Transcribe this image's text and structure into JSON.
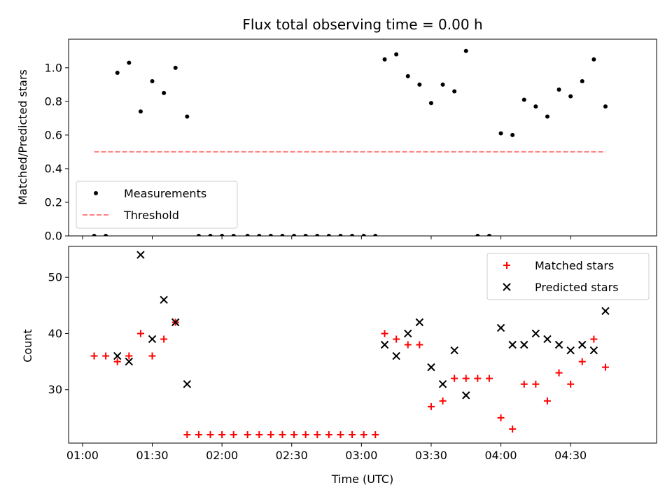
{
  "chart_data": [
    {
      "type": "scatter",
      "title": "Flux total observing time = 0.00 h",
      "xlabel": "",
      "ylabel": "Matched/Predicted stars",
      "xlim": [
        "00:54",
        "05:07"
      ],
      "ylim": [
        0,
        1.17
      ],
      "yticks": [
        0.0,
        0.2,
        0.4,
        0.6,
        0.8,
        1.0
      ],
      "ytick_labels": [
        "0.0",
        "0.2",
        "0.4",
        "0.6",
        "0.8",
        "1.0"
      ],
      "legend_position": "lower-left",
      "series": [
        {
          "name": "Measurements",
          "marker": "dot",
          "color": "#000000",
          "points": [
            [
              "01:05",
              0.0
            ],
            [
              "01:10",
              0.0
            ],
            [
              "01:15",
              0.97
            ],
            [
              "01:20",
              1.03
            ],
            [
              "01:25",
              0.74
            ],
            [
              "01:30",
              0.92
            ],
            [
              "01:35",
              0.85
            ],
            [
              "01:40",
              1.0
            ],
            [
              "01:45",
              0.71
            ],
            [
              "01:50",
              0.0
            ],
            [
              "01:55",
              0.0
            ],
            [
              "02:00",
              0.0
            ],
            [
              "02:05",
              0.0
            ],
            [
              "02:11",
              0.0
            ],
            [
              "02:16",
              0.0
            ],
            [
              "02:21",
              0.0
            ],
            [
              "02:26",
              0.0
            ],
            [
              "02:31",
              0.0
            ],
            [
              "02:36",
              0.0
            ],
            [
              "02:41",
              0.0
            ],
            [
              "02:46",
              0.0
            ],
            [
              "02:51",
              0.0
            ],
            [
              "02:56",
              0.0
            ],
            [
              "03:01",
              0.0
            ],
            [
              "03:06",
              0.0
            ],
            [
              "03:10",
              1.05
            ],
            [
              "03:15",
              1.08
            ],
            [
              "03:20",
              0.95
            ],
            [
              "03:25",
              0.9
            ],
            [
              "03:30",
              0.79
            ],
            [
              "03:35",
              0.9
            ],
            [
              "03:40",
              0.86
            ],
            [
              "03:45",
              1.1
            ],
            [
              "03:50",
              0.0
            ],
            [
              "03:55",
              0.0
            ],
            [
              "04:00",
              0.61
            ],
            [
              "04:05",
              0.6
            ],
            [
              "04:10",
              0.81
            ],
            [
              "04:15",
              0.77
            ],
            [
              "04:20",
              0.71
            ],
            [
              "04:25",
              0.87
            ],
            [
              "04:30",
              0.83
            ],
            [
              "04:35",
              0.92
            ],
            [
              "04:40",
              1.05
            ],
            [
              "04:45",
              0.77
            ]
          ]
        },
        {
          "name": "Threshold",
          "marker": "dashed-line",
          "color": "#ff7f7f",
          "points": [
            [
              "01:05",
              0.5
            ],
            [
              "04:45",
              0.5
            ]
          ]
        }
      ]
    },
    {
      "type": "scatter",
      "title": "",
      "xlabel": "Time (UTC)",
      "ylabel": "Count",
      "xlim": [
        "00:54",
        "05:07"
      ],
      "ylim": [
        20.5,
        55.5
      ],
      "yticks": [
        30,
        40,
        50
      ],
      "ytick_labels": [
        "30",
        "40",
        "50"
      ],
      "xticks": [
        "01:00",
        "01:30",
        "02:00",
        "02:30",
        "03:00",
        "03:30",
        "04:00",
        "04:30"
      ],
      "xtick_labels": [
        "01:00",
        "01:30",
        "02:00",
        "02:30",
        "03:00",
        "03:30",
        "04:00",
        "04:30"
      ],
      "legend_position": "top-right",
      "series": [
        {
          "name": "Matched stars",
          "marker": "plus",
          "color": "#ff0000",
          "points": [
            [
              "01:05",
              36
            ],
            [
              "01:10",
              36
            ],
            [
              "01:15",
              35
            ],
            [
              "01:20",
              36
            ],
            [
              "01:25",
              40
            ],
            [
              "01:30",
              36
            ],
            [
              "01:35",
              39
            ],
            [
              "01:40",
              42
            ],
            [
              "01:45",
              22
            ],
            [
              "01:50",
              22
            ],
            [
              "01:55",
              22
            ],
            [
              "02:00",
              22
            ],
            [
              "02:05",
              22
            ],
            [
              "02:11",
              22
            ],
            [
              "02:16",
              22
            ],
            [
              "02:21",
              22
            ],
            [
              "02:26",
              22
            ],
            [
              "02:31",
              22
            ],
            [
              "02:36",
              22
            ],
            [
              "02:41",
              22
            ],
            [
              "02:46",
              22
            ],
            [
              "02:51",
              22
            ],
            [
              "02:56",
              22
            ],
            [
              "03:01",
              22
            ],
            [
              "03:06",
              22
            ],
            [
              "03:10",
              40
            ],
            [
              "03:15",
              39
            ],
            [
              "03:20",
              38
            ],
            [
              "03:25",
              38
            ],
            [
              "03:30",
              27
            ],
            [
              "03:35",
              28
            ],
            [
              "03:40",
              32
            ],
            [
              "03:45",
              32
            ],
            [
              "03:50",
              32
            ],
            [
              "03:55",
              32
            ],
            [
              "04:00",
              25
            ],
            [
              "04:05",
              23
            ],
            [
              "04:10",
              31
            ],
            [
              "04:15",
              31
            ],
            [
              "04:20",
              28
            ],
            [
              "04:25",
              33
            ],
            [
              "04:30",
              31
            ],
            [
              "04:35",
              35
            ],
            [
              "04:40",
              39
            ],
            [
              "04:45",
              34
            ]
          ]
        },
        {
          "name": "Predicted stars",
          "marker": "x",
          "color": "#000000",
          "points": [
            [
              "01:15",
              36
            ],
            [
              "01:20",
              35
            ],
            [
              "01:25",
              54
            ],
            [
              "01:30",
              39
            ],
            [
              "01:35",
              46
            ],
            [
              "01:40",
              42
            ],
            [
              "01:45",
              31
            ],
            [
              "03:10",
              38
            ],
            [
              "03:15",
              36
            ],
            [
              "03:20",
              40
            ],
            [
              "03:25",
              42
            ],
            [
              "03:30",
              34
            ],
            [
              "03:35",
              31
            ],
            [
              "03:40",
              37
            ],
            [
              "03:45",
              29
            ],
            [
              "04:00",
              41
            ],
            [
              "04:05",
              38
            ],
            [
              "04:10",
              38
            ],
            [
              "04:15",
              40
            ],
            [
              "04:20",
              39
            ],
            [
              "04:25",
              38
            ],
            [
              "04:30",
              37
            ],
            [
              "04:35",
              38
            ],
            [
              "04:40",
              37
            ],
            [
              "04:45",
              44
            ]
          ]
        }
      ]
    }
  ]
}
